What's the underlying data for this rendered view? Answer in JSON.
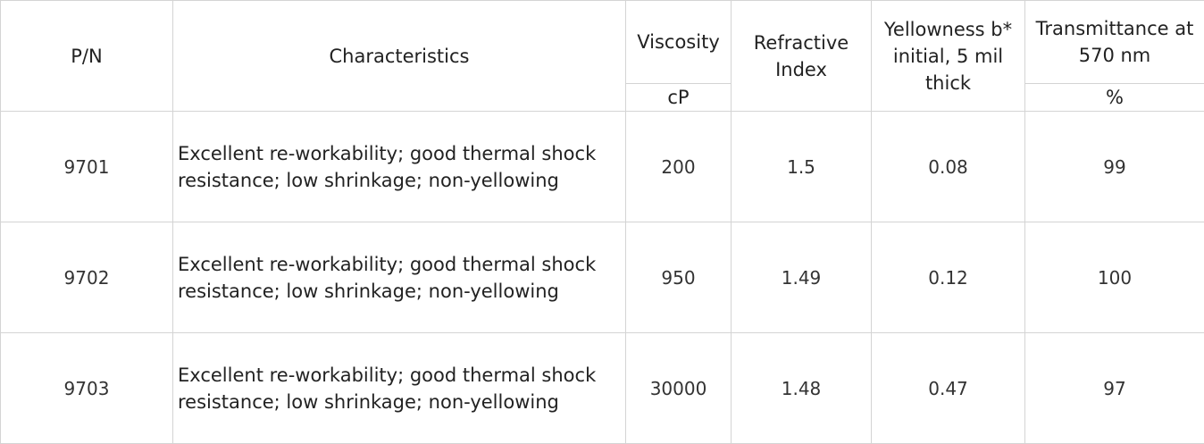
{
  "table": {
    "header": {
      "pn": "P/N",
      "characteristics": "Characteristics",
      "viscosity": "Viscosity",
      "viscosity_unit": "cP",
      "refractive_index": "Refractive Index",
      "yellowness": "Yellowness b* initial, 5 mil thick",
      "transmittance": "Transmittance at 570 nm",
      "transmittance_unit": "%"
    },
    "rows": [
      [
        "9701",
        "Excellent re-workability; good thermal shock resistance; low shrinkage; non-yellowing",
        "200",
        "1.5",
        "0.08",
        "99"
      ],
      [
        "9702",
        "Excellent re-workability; good thermal shock resistance; low shrinkage; non-yellowing",
        "950",
        "1.49",
        "0.12",
        "100"
      ],
      [
        "9703",
        "Excellent re-workability; good thermal shock resistance; low shrinkage; non-yellowing",
        "30000",
        "1.48",
        "0.47",
        "97"
      ]
    ]
  }
}
